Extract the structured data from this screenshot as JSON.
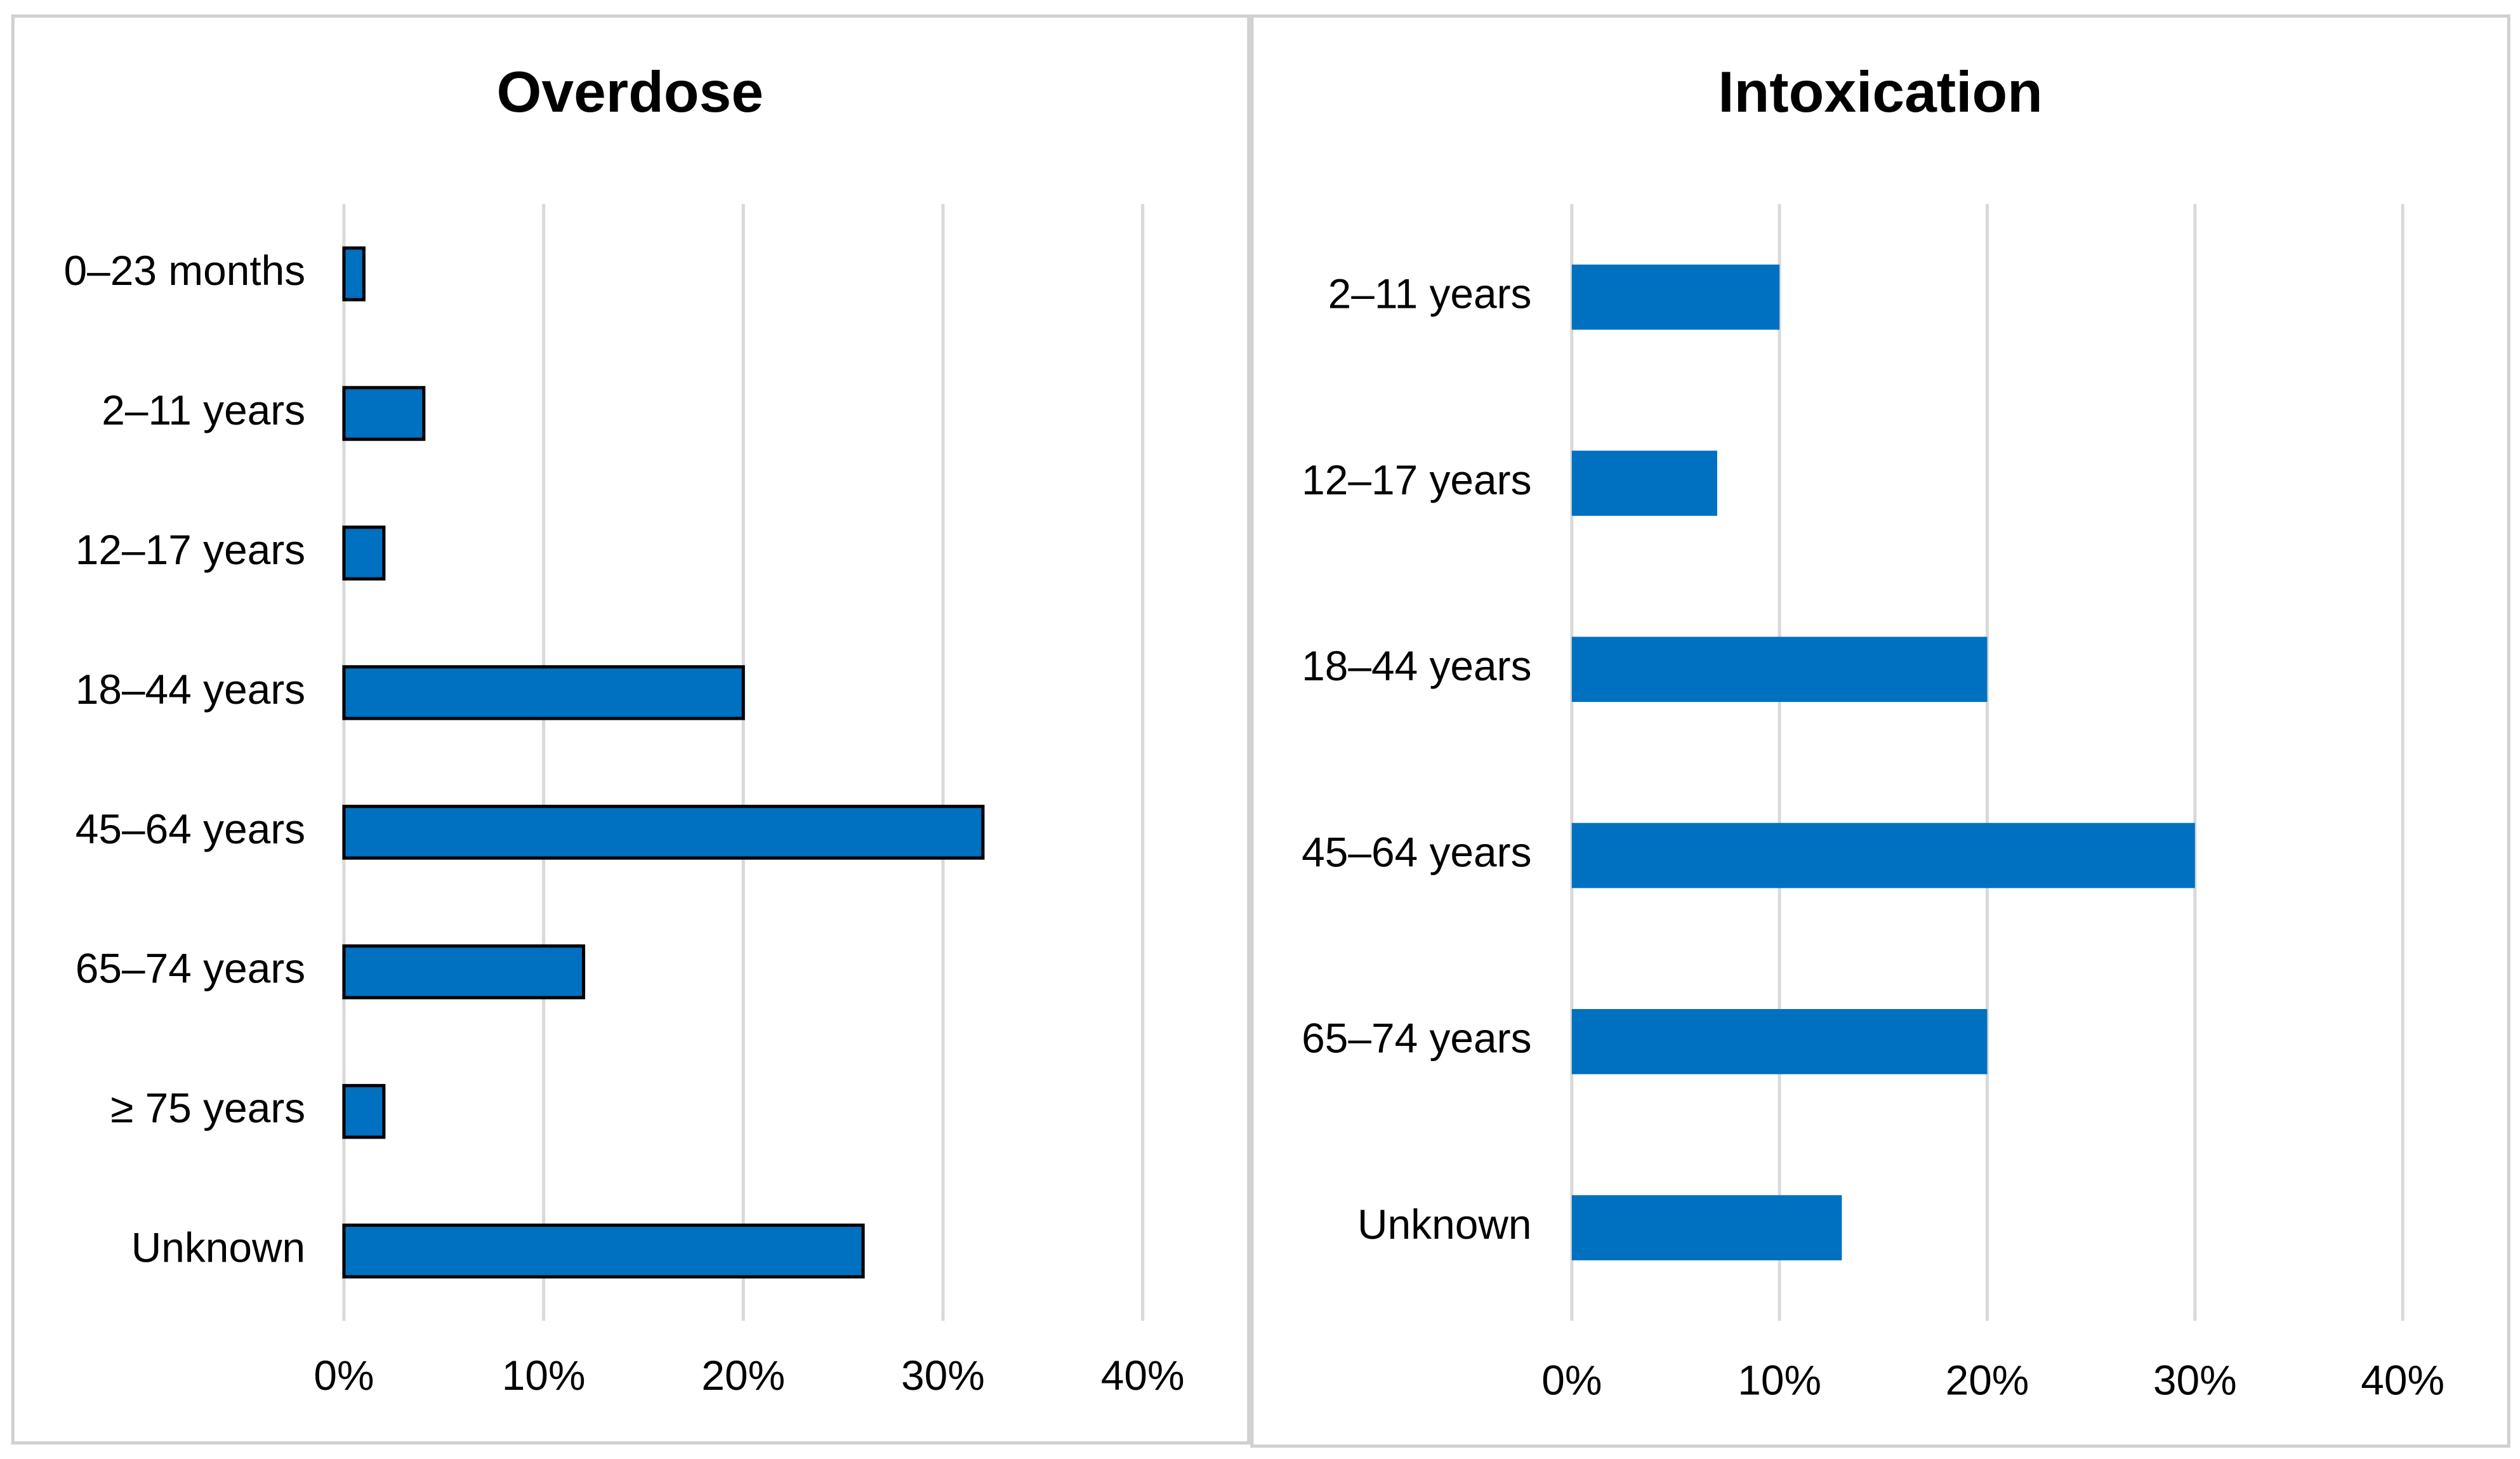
{
  "chart_data": [
    {
      "type": "bar",
      "orientation": "horizontal",
      "title": "Overdose",
      "categories": [
        "0–23 months",
        "2–11 years",
        "12–17 years",
        "18–44 years",
        "45–64 years",
        "65–74 years",
        "≥ 75 years",
        "Unknown"
      ],
      "values": [
        1,
        4,
        2,
        20,
        32,
        12,
        2,
        26
      ],
      "color": "#0070c0",
      "edgecolor": "#000000",
      "xlim": [
        0,
        40
      ],
      "xticks": [
        {
          "value": 0,
          "label": "0%"
        },
        {
          "value": 10,
          "label": "10%"
        },
        {
          "value": 20,
          "label": "20%"
        },
        {
          "value": 30,
          "label": "30%"
        },
        {
          "value": 40,
          "label": "40%"
        }
      ],
      "grid": true
    },
    {
      "type": "bar",
      "orientation": "horizontal",
      "title": "Intoxication",
      "categories": [
        "2–11 years",
        "12–17 years",
        "18–44 years",
        "45–64 years",
        "65–74 years",
        "Unknown"
      ],
      "values": [
        10,
        7,
        20,
        30,
        20,
        13
      ],
      "color": "#0070c0",
      "xlim": [
        0,
        40
      ],
      "xticks": [
        {
          "value": 0,
          "label": "0%"
        },
        {
          "value": 10,
          "label": "10%"
        },
        {
          "value": 20,
          "label": "20%"
        },
        {
          "value": 30,
          "label": "30%"
        },
        {
          "value": 40,
          "label": "40%"
        }
      ],
      "grid": true
    }
  ]
}
